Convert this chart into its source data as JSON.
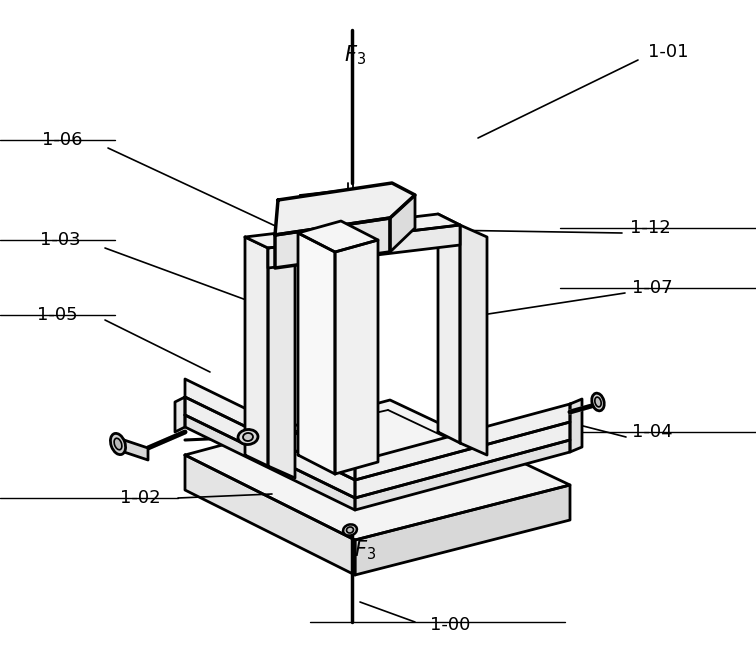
{
  "background_color": "#ffffff",
  "line_color": "#000000",
  "figsize": [
    7.56,
    6.56
  ],
  "dpi": 100
}
